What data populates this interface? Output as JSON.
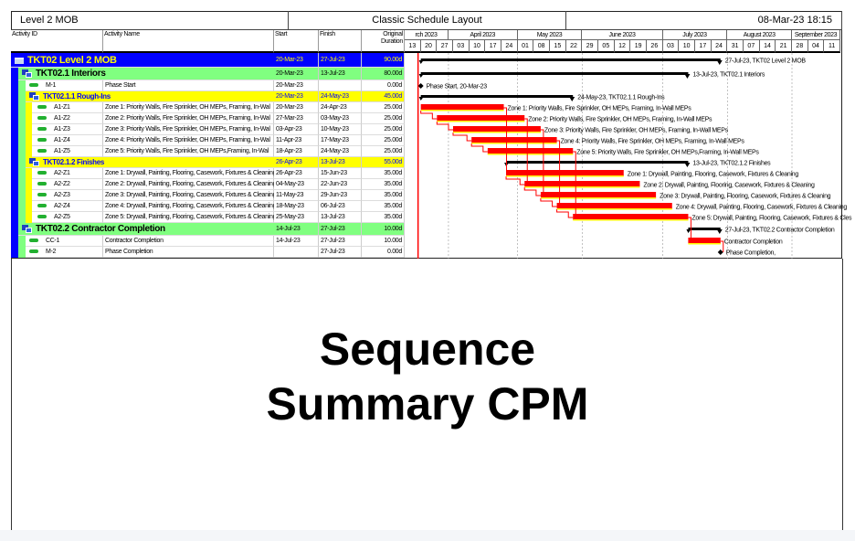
{
  "header": {
    "project": "Level 2 MOB",
    "layout": "Classic Schedule Layout",
    "datetime": "08-Mar-23 18:15"
  },
  "columns": {
    "id": "Activity ID",
    "name": "Activity Name",
    "start": "Start",
    "finish": "Finish",
    "duration": "Original Duration"
  },
  "timeline": {
    "start": "13-Mar-23",
    "months": [
      "rch 2023",
      "April 2023",
      "May 2023",
      "June 2023",
      "July 2023",
      "August 2023",
      "September 2023"
    ],
    "weeks": [
      "13",
      "20",
      "27",
      "03",
      "10",
      "17",
      "24",
      "01",
      "08",
      "15",
      "22",
      "29",
      "05",
      "12",
      "19",
      "26",
      "03",
      "10",
      "17",
      "24",
      "31",
      "07",
      "14",
      "21",
      "28",
      "04",
      "11"
    ],
    "data_date": "20-Mar-23"
  },
  "colors": {
    "wbs0": "#0000ff",
    "wbs1": "#80ff80",
    "wbs2": "#ffff00",
    "critical": "#ff0000",
    "summary": "#000000"
  },
  "rows": [
    {
      "id": "TKT02  Level 2 MOB",
      "name": "",
      "start": "20-Mar-23",
      "finish": "27-Jul-23",
      "duration": "90.00d",
      "type": "wbs0",
      "bar_label": "27-Jul-23, TKT02  Level 2 MOB",
      "icon": "folder-icon"
    },
    {
      "id": "TKT02.1  Interiors",
      "name": "",
      "start": "20-Mar-23",
      "finish": "13-Jul-23",
      "duration": "80.00d",
      "type": "wbs1",
      "bar_label": "13-Jul-23, TKT02.1  Interiors",
      "icon": "wbs-icon"
    },
    {
      "id": "M-1",
      "name": "Phase Start",
      "start": "20-Mar-23",
      "finish": "",
      "duration": "0.00d",
      "type": "ms_start",
      "bar_label": "Phase Start, 20-Mar-23",
      "icon": "activity-icon",
      "indent": 2
    },
    {
      "id": "TKT02.1.1  Rough-Ins",
      "name": "",
      "start": "20-Mar-23",
      "finish": "24-May-23",
      "duration": "45.00d",
      "type": "wbs2",
      "bar_label": "24-May-23, TKT02.1.1  Rough-Ins",
      "icon": "wbs-icon"
    },
    {
      "id": "A1-Z1",
      "name": "Zone 1: Priority Walls, Fire Sprinkler, OH MEPs, Framing, In-Wal",
      "start": "20-Mar-23",
      "finish": "24-Apr-23",
      "duration": "25.00d",
      "type": "task",
      "bar_label": "Zone 1: Priority Walls, Fire Sprinkler, OH MEPs, Framing, In-Wall MEPs",
      "icon": "activity-icon",
      "indent": 3
    },
    {
      "id": "A1-Z2",
      "name": "Zone 2: Priority Walls, Fire Sprinkler, OH MEPs, Framing, In-Wal",
      "start": "27-Mar-23",
      "finish": "03-May-23",
      "duration": "25.00d",
      "type": "task",
      "bar_label": "Zone 2: Priority Walls, Fire Sprinkler, OH MEPs, Framing, In-Wall MEPs",
      "icon": "activity-icon",
      "indent": 3
    },
    {
      "id": "A1-Z3",
      "name": "Zone 3: Priority Walls, Fire Sprinkler, OH MEPs, Framing, In-Wal",
      "start": "03-Apr-23",
      "finish": "10-May-23",
      "duration": "25.00d",
      "type": "task",
      "bar_label": "Zone 3: Priority Walls, Fire Sprinkler, OH MEPs, Framing, In-Wall MEPs",
      "icon": "activity-icon",
      "indent": 3
    },
    {
      "id": "A1-Z4",
      "name": "Zone 4: Priority Walls, Fire Sprinkler, OH MEPs, Framing, In-Wal",
      "start": "11-Apr-23",
      "finish": "17-May-23",
      "duration": "25.00d",
      "type": "task",
      "bar_label": "Zone 4: Priority Walls, Fire Sprinkler, OH MEPs, Framing, In-Wall MEPs",
      "icon": "activity-icon",
      "indent": 3
    },
    {
      "id": "A1-Z5",
      "name": "Zone 5: Priority Walls, Fire Sprinkler, OH MEPs,Framing, In-Wal",
      "start": "18-Apr-23",
      "finish": "24-May-23",
      "duration": "25.00d",
      "type": "task",
      "bar_label": "Zone 5: Priority Walls, Fire Sprinkler, OH MEPs,Framing, In-Wall MEPs",
      "icon": "activity-icon",
      "indent": 3
    },
    {
      "id": "TKT02.1.2  Finishes",
      "name": "",
      "start": "26-Apr-23",
      "finish": "13-Jul-23",
      "duration": "55.00d",
      "type": "wbs2",
      "bar_label": "13-Jul-23, TKT02.1.2  Finishes",
      "icon": "wbs-icon"
    },
    {
      "id": "A2-Z1",
      "name": "Zone 1: Drywall, Painting, Flooring, Casework, Fixtures & Cleaning",
      "start": "26-Apr-23",
      "finish": "15-Jun-23",
      "duration": "35.00d",
      "type": "task",
      "bar_label": "Zone 1: Drywall, Painting, Flooring, Casework, Fixtures & Cleaning",
      "icon": "activity-icon",
      "indent": 3
    },
    {
      "id": "A2-Z2",
      "name": "Zone 2: Drywall, Painting, Flooring, Casework, Fixtures & Cleaning",
      "start": "04-May-23",
      "finish": "22-Jun-23",
      "duration": "35.00d",
      "type": "task",
      "bar_label": "Zone 2: Drywall, Painting, Flooring, Casework, Fixtures & Cleaning",
      "icon": "activity-icon",
      "indent": 3
    },
    {
      "id": "A2-Z3",
      "name": "Zone 3: Drywall, Painting, Flooring, Casework, Fixtures & Cleaning",
      "start": "11-May-23",
      "finish": "29-Jun-23",
      "duration": "35.00d",
      "type": "task",
      "bar_label": "Zone 3: Drywall, Painting, Flooring, Casework, Fixtures & Cleaning",
      "icon": "activity-icon",
      "indent": 3
    },
    {
      "id": "A2-Z4",
      "name": "Zone 4: Drywall, Painting, Flooring, Casework, Fixtures & Cleaning",
      "start": "18-May-23",
      "finish": "06-Jul-23",
      "duration": "35.00d",
      "type": "task",
      "bar_label": "Zone 4: Drywall, Painting, Flooring, Casework, Fixtures & Cleaning",
      "icon": "activity-icon",
      "indent": 3
    },
    {
      "id": "A2-Z5",
      "name": "Zone 5: Drywall, Painting, Flooring, Casework, Fixtures & Cleaning",
      "start": "25-May-23",
      "finish": "13-Jul-23",
      "duration": "35.00d",
      "type": "task",
      "bar_label": "Zone 5: Drywall, Painting, Flooring, Casework, Fixtures & Cles",
      "icon": "activity-icon",
      "indent": 3
    },
    {
      "id": "TKT02.2  Contractor Completion",
      "name": "",
      "start": "14-Jul-23",
      "finish": "27-Jul-23",
      "duration": "10.00d",
      "type": "wbs1",
      "bar_label": "27-Jul-23, TKT02.2  Contractor Completion",
      "icon": "wbs-icon"
    },
    {
      "id": "CC-1",
      "name": "Contractor Completion",
      "start": "14-Jul-23",
      "finish": "27-Jul-23",
      "duration": "10.00d",
      "type": "task",
      "bar_label": "Contractor Completion",
      "icon": "activity-icon",
      "indent": 2
    },
    {
      "id": "M-2",
      "name": "Phase Completion",
      "start": "",
      "finish": "27-Jul-23",
      "duration": "0.00d",
      "type": "ms_finish",
      "bar_label": "Phase Completion,",
      "icon": "activity-icon",
      "indent": 2
    }
  ],
  "caption": {
    "line1": "Sequence",
    "line2": "Summary CPM"
  }
}
